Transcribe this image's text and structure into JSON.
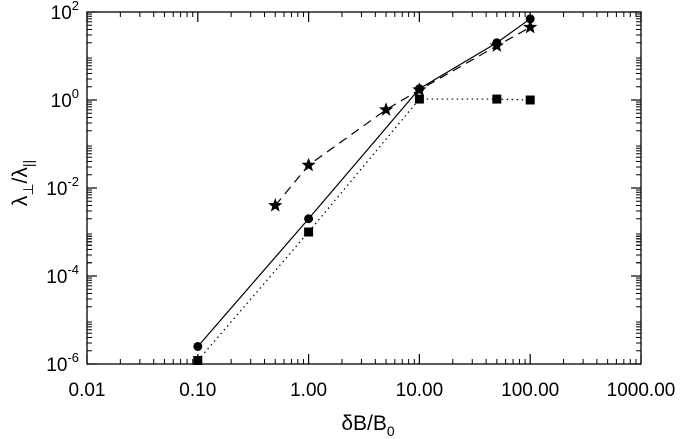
{
  "chart_data": {
    "type": "line",
    "xscale": "log",
    "yscale": "log",
    "xlim": [
      0.01,
      1000
    ],
    "ylim": [
      1e-06,
      100
    ],
    "xlabel": {
      "base": "δB/B",
      "sub": "0"
    },
    "ylabel": {
      "a": "λ",
      "a_sub": "⊥",
      "sep": "/",
      "b": "λ",
      "b_sub": "||"
    },
    "xticks": [
      {
        "value": 0.01,
        "label": "0.01"
      },
      {
        "value": 0.1,
        "label": "0.10"
      },
      {
        "value": 1,
        "label": "1.00"
      },
      {
        "value": 10,
        "label": "10.00"
      },
      {
        "value": 100,
        "label": "100.00"
      },
      {
        "value": 1000,
        "label": "1000.00"
      }
    ],
    "yticks": [
      {
        "value": 1e-06,
        "base": "10",
        "exp": "-6"
      },
      {
        "value": 0.0001,
        "base": "10",
        "exp": "-4"
      },
      {
        "value": 0.01,
        "base": "10",
        "exp": "-2"
      },
      {
        "value": 1,
        "base": "10",
        "exp": "0"
      },
      {
        "value": 100,
        "base": "10",
        "exp": "2"
      }
    ],
    "series": [
      {
        "marker": "circle",
        "line": "solid",
        "color": "#000000",
        "points": [
          [
            0.1,
            2.5e-06
          ],
          [
            1,
            0.002
          ],
          [
            10,
            1.8
          ],
          [
            50,
            20
          ],
          [
            100,
            70
          ]
        ]
      },
      {
        "marker": "square",
        "line": "dotted",
        "color": "#000000",
        "points": [
          [
            0.1,
            1.2e-06
          ],
          [
            1,
            0.001
          ],
          [
            10,
            1.05
          ],
          [
            50,
            1.05
          ],
          [
            100,
            1.0
          ]
        ]
      },
      {
        "marker": "star",
        "line": "dashed",
        "color": "#000000",
        "points": [
          [
            0.5,
            0.004
          ],
          [
            1,
            0.033
          ],
          [
            5,
            0.6
          ],
          [
            10,
            1.7
          ],
          [
            50,
            17
          ],
          [
            100,
            45
          ]
        ]
      }
    ]
  }
}
